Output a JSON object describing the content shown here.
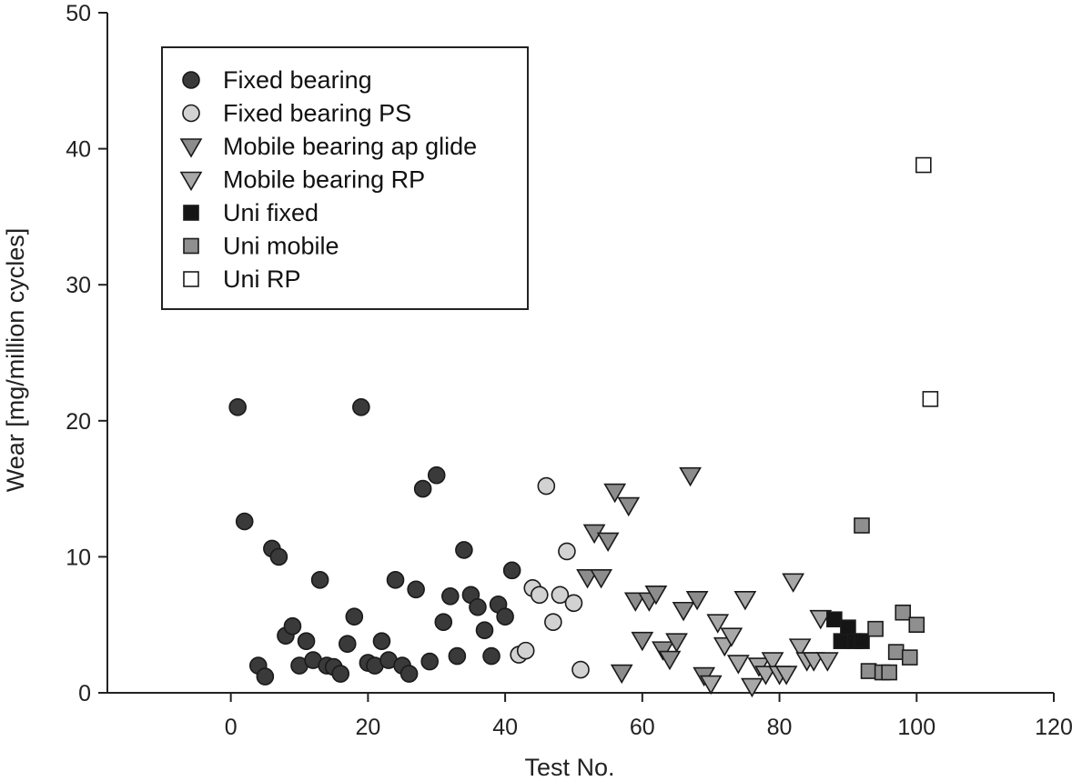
{
  "chart_data": {
    "type": "scatter",
    "title": "",
    "xlabel": "Test No.",
    "ylabel": "Wear [mg/million cycles]",
    "xlim": [
      -18,
      120
    ],
    "ylim": [
      0,
      50
    ],
    "xticks": [
      0,
      20,
      40,
      60,
      80,
      100,
      120
    ],
    "yticks": [
      0,
      10,
      20,
      30,
      40,
      50
    ],
    "xtick_labels": [
      "0",
      "20",
      "40",
      "60",
      "80",
      "100",
      "120"
    ],
    "ytick_labels": [
      "0",
      "10",
      "20",
      "30",
      "40",
      "50"
    ],
    "grid": false,
    "legend_position": "top-left",
    "series": [
      {
        "name": "Fixed bearing",
        "marker": "circle",
        "fill": "#3a3a3a",
        "x": [
          1,
          2,
          4,
          5,
          6,
          7,
          8,
          9,
          10,
          11,
          12,
          13,
          14,
          15,
          16,
          17,
          18,
          19,
          20,
          21,
          22,
          23,
          24,
          25,
          26,
          27,
          28,
          29,
          30,
          31,
          32,
          33,
          34,
          35,
          36,
          37,
          38,
          39,
          40,
          41
        ],
        "y": [
          21,
          12.6,
          2.0,
          1.2,
          10.6,
          10.0,
          4.2,
          4.9,
          2.0,
          3.8,
          2.4,
          8.3,
          2.0,
          1.9,
          1.4,
          3.6,
          5.6,
          21,
          2.2,
          2.0,
          3.8,
          2.4,
          8.3,
          2.0,
          1.4,
          7.6,
          15.0,
          2.3,
          16.0,
          5.2,
          7.1,
          2.7,
          10.5,
          7.2,
          6.3,
          4.6,
          2.7,
          6.5,
          5.6,
          9.0
        ]
      },
      {
        "name": "Fixed bearing PS",
        "marker": "circle",
        "fill": "#d2d2d2",
        "x": [
          42,
          43,
          44,
          45,
          46,
          47,
          48,
          49,
          50,
          51
        ],
        "y": [
          2.8,
          3.1,
          7.7,
          7.2,
          15.2,
          5.2,
          7.2,
          10.4,
          6.6,
          1.7
        ]
      },
      {
        "name": "Mobile bearing ap glide",
        "marker": "triangle-down",
        "fill": "#8c8c8c",
        "x": [
          52,
          53,
          54,
          55,
          56,
          57,
          58,
          59,
          60,
          61,
          62,
          63,
          64,
          65,
          66,
          67,
          68,
          69
        ],
        "y": [
          8.5,
          11.8,
          8.5,
          11.2,
          14.8,
          1.5,
          13.8,
          6.8,
          3.9,
          6.8,
          7.3,
          3.2,
          2.5,
          3.8,
          6.1,
          16.0,
          6.9,
          1.3
        ]
      },
      {
        "name": "Mobile bearing RP",
        "marker": "triangle-down",
        "fill": "#a8a8a8",
        "x": [
          70,
          71,
          72,
          73,
          74,
          75,
          76,
          77,
          78,
          79,
          80,
          81,
          82,
          83,
          84,
          85,
          86,
          87
        ],
        "y": [
          0.7,
          5.2,
          3.5,
          4.2,
          2.2,
          6.9,
          0.5,
          2.0,
          1.4,
          2.4,
          1.4,
          1.4,
          8.2,
          3.4,
          2.4,
          2.4,
          5.5,
          2.4
        ]
      },
      {
        "name": "Uni fixed",
        "marker": "square",
        "fill": "#151515",
        "x": [
          88,
          89,
          90,
          91,
          92
        ],
        "y": [
          5.4,
          3.8,
          4.8,
          3.8,
          3.8
        ]
      },
      {
        "name": "Uni mobile",
        "marker": "square",
        "fill": "#8f8f8f",
        "x": [
          92,
          93,
          94,
          95,
          96,
          97,
          98,
          99,
          100
        ],
        "y": [
          12.3,
          1.6,
          4.7,
          1.5,
          1.5,
          3.0,
          5.9,
          2.6,
          5.0
        ]
      },
      {
        "name": "Uni RP",
        "marker": "square",
        "fill": "#ffffff",
        "x": [
          101,
          102
        ],
        "y": [
          38.8,
          21.6
        ]
      }
    ]
  }
}
